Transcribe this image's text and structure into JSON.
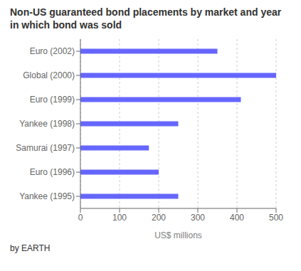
{
  "chart_data": {
    "type": "bar",
    "orientation": "horizontal",
    "title": "Non-US guaranteed bond placements by market and year in which bond was sold",
    "categories": [
      "Yankee (1995)",
      "Euro (1996)",
      "Samurai (1997)",
      "Yankee (1998)",
      "Euro (1999)",
      "Global (2000)",
      "Euro (2002)"
    ],
    "values": [
      250,
      200,
      175,
      250,
      410,
      500,
      350
    ],
    "color": "#6666ff",
    "xlabel": "US$ millions",
    "xlim": [
      0,
      500
    ],
    "xticks": [
      0,
      100,
      200,
      300,
      400,
      500
    ],
    "grid": true,
    "annotations": [
      "by EARTH"
    ]
  }
}
